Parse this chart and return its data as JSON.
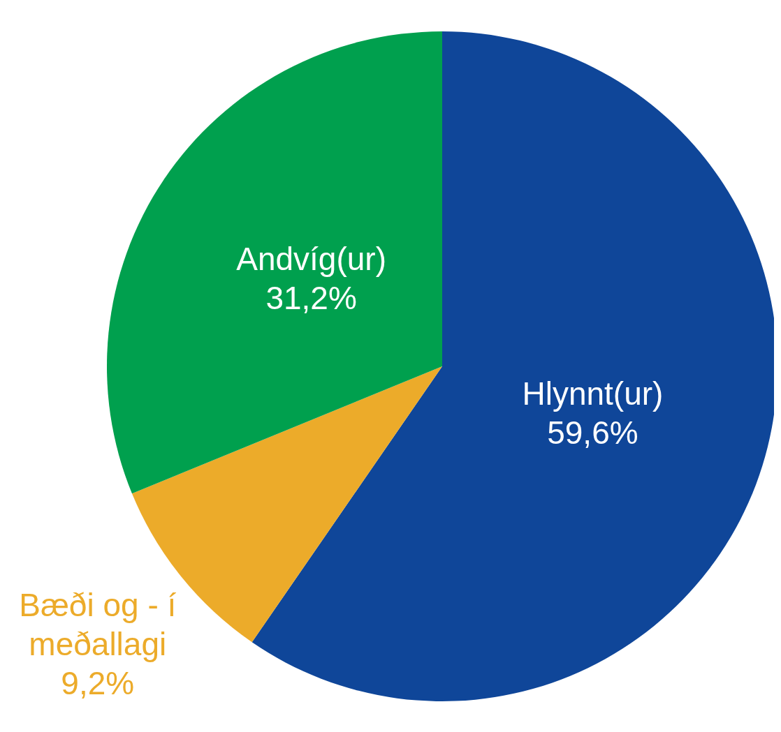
{
  "chart_data": {
    "type": "pie",
    "categories": [
      "Hlynnt(ur)",
      "Bæði og - í meðallagi",
      "Andvíg(ur)"
    ],
    "values": [
      59.6,
      9.2,
      31.2
    ],
    "colors": [
      "#0f4699",
      "#ecab2a",
      "#00a04e"
    ],
    "value_labels": [
      "59,6%",
      "9,2%",
      "31,2%"
    ]
  }
}
